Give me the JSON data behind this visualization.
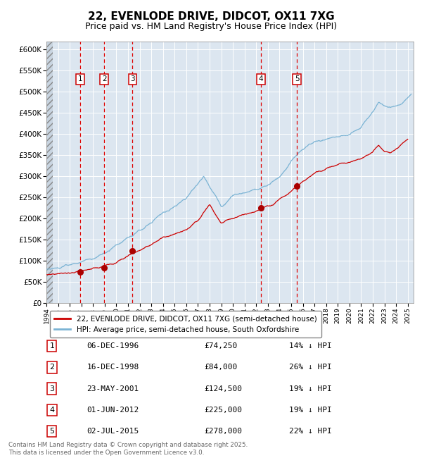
{
  "title": "22, EVENLODE DRIVE, DIDCOT, OX11 7XG",
  "subtitle": "Price paid vs. HM Land Registry's House Price Index (HPI)",
  "title_fontsize": 11,
  "subtitle_fontsize": 9,
  "background_color": "#ffffff",
  "plot_bg_color": "#dce6f0",
  "grid_color": "#ffffff",
  "ylim": [
    0,
    620000
  ],
  "yticks": [
    0,
    50000,
    100000,
    150000,
    200000,
    250000,
    300000,
    350000,
    400000,
    450000,
    500000,
    550000,
    600000
  ],
  "ytick_labels": [
    "£0",
    "£50K",
    "£100K",
    "£150K",
    "£200K",
    "£250K",
    "£300K",
    "£350K",
    "£400K",
    "£450K",
    "£500K",
    "£550K",
    "£600K"
  ],
  "xlim_start": 1994.0,
  "xlim_end": 2025.5,
  "sale_dates_year": [
    1996.92,
    1998.96,
    2001.39,
    2012.42,
    2015.5
  ],
  "sale_prices": [
    74250,
    84000,
    124500,
    225000,
    278000
  ],
  "sale_labels": [
    "1",
    "2",
    "3",
    "4",
    "5"
  ],
  "sale_date_strings": [
    "06-DEC-1996",
    "16-DEC-1998",
    "23-MAY-2001",
    "01-JUN-2012",
    "02-JUL-2015"
  ],
  "sale_pct_below": [
    "14%",
    "26%",
    "19%",
    "19%",
    "22%"
  ],
  "hpi_line_color": "#7ab3d4",
  "price_line_color": "#cc0000",
  "vline_color": "#dd0000",
  "dot_color": "#aa0000",
  "legend_line1": "22, EVENLODE DRIVE, DIDCOT, OX11 7XG (semi-detached house)",
  "legend_line2": "HPI: Average price, semi-detached house, South Oxfordshire",
  "footer_text": "Contains HM Land Registry data © Crown copyright and database right 2025.\nThis data is licensed under the Open Government Licence v3.0.",
  "hpi_anchors_x": [
    1994,
    1995,
    1996,
    1997,
    1998,
    1999,
    2000,
    2001,
    2002,
    2003,
    2004,
    2005,
    2006,
    2007,
    2007.5,
    2008,
    2008.5,
    2009,
    2009.5,
    2010,
    2011,
    2012,
    2013,
    2014,
    2015,
    2016,
    2017,
    2018,
    2019,
    2020,
    2021,
    2022,
    2022.5,
    2023,
    2023.5,
    2024,
    2024.5,
    2025.3
  ],
  "hpi_anchors_y": [
    80000,
    83000,
    90000,
    98000,
    105000,
    118000,
    138000,
    155000,
    170000,
    190000,
    215000,
    228000,
    248000,
    285000,
    300000,
    275000,
    255000,
    230000,
    240000,
    255000,
    262000,
    268000,
    278000,
    298000,
    335000,
    365000,
    382000,
    388000,
    395000,
    400000,
    415000,
    455000,
    475000,
    468000,
    462000,
    468000,
    472000,
    495000
  ],
  "price_anchors_x": [
    1994,
    1995,
    1996,
    1997,
    1998,
    1999,
    2000,
    2001,
    2002,
    2003,
    2004,
    2005,
    2006,
    2007,
    2008,
    2008.5,
    2009,
    2009.5,
    2010,
    2011,
    2012,
    2013,
    2013.5,
    2014,
    2015,
    2016,
    2017,
    2018,
    2019,
    2020,
    2021,
    2022,
    2022.5,
    2023,
    2023.5,
    2024,
    2025.0
  ],
  "price_anchors_y": [
    68000,
    70000,
    72000,
    76000,
    82000,
    88000,
    98000,
    112000,
    125000,
    138000,
    155000,
    162000,
    175000,
    195000,
    235000,
    210000,
    190000,
    195000,
    202000,
    210000,
    218000,
    228000,
    232000,
    245000,
    265000,
    288000,
    308000,
    318000,
    328000,
    335000,
    342000,
    358000,
    375000,
    360000,
    355000,
    365000,
    388000
  ]
}
